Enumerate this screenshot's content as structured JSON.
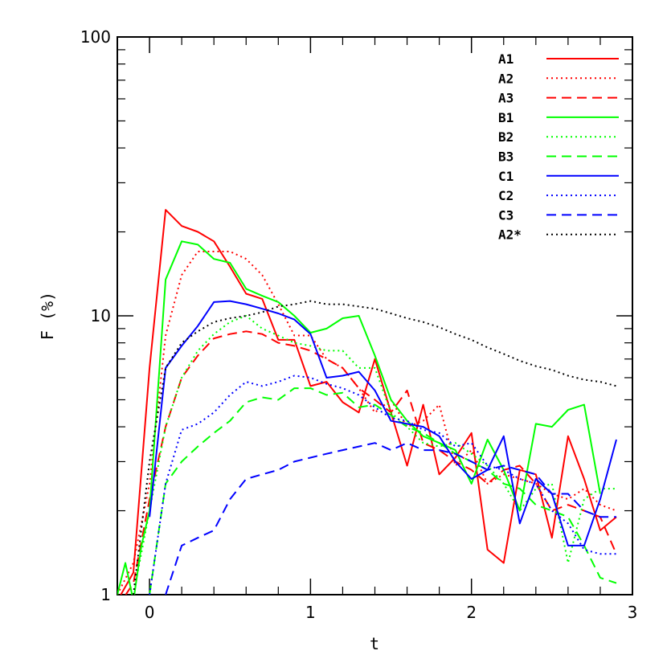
{
  "chart_data": {
    "type": "line",
    "xlabel": "t",
    "ylabel": "F (%)",
    "xlim": [
      -0.2,
      3.0
    ],
    "ylim": [
      1,
      100
    ],
    "yscale": "log",
    "x_ticks": [
      "0",
      "1",
      "2",
      "3"
    ],
    "y_ticks": [
      "1",
      "10",
      "100"
    ],
    "legend_position": "top-right",
    "series": [
      {
        "name": "A1",
        "color": "#ff0000",
        "dash": "solid",
        "x": [
          -0.2,
          -0.1,
          0.0,
          0.1,
          0.2,
          0.3,
          0.4,
          0.5,
          0.6,
          0.7,
          0.8,
          0.9,
          1.0,
          1.1,
          1.2,
          1.3,
          1.4,
          1.5,
          1.6,
          1.7,
          1.8,
          1.9,
          2.0,
          2.1,
          2.2,
          2.3,
          2.4,
          2.5,
          2.6,
          2.7,
          2.8,
          2.9
        ],
        "y": [
          0.95,
          1.2,
          6.5,
          24,
          21,
          20,
          18.5,
          15,
          12,
          11.5,
          8.2,
          8.2,
          5.6,
          5.8,
          4.9,
          4.5,
          7.0,
          4.5,
          2.9,
          4.8,
          2.7,
          3.1,
          3.8,
          1.45,
          1.3,
          2.8,
          2.7,
          1.6,
          3.7,
          2.6,
          1.7,
          1.9
        ]
      },
      {
        "name": "A2",
        "color": "#ff0000",
        "dash": "dotted",
        "x": [
          -0.2,
          -0.1,
          0.0,
          0.1,
          0.2,
          0.3,
          0.4,
          0.5,
          0.6,
          0.7,
          0.8,
          0.9,
          1.0,
          1.1,
          1.2,
          1.3,
          1.4,
          1.5,
          1.6,
          1.7,
          1.8,
          1.9,
          2.0,
          2.1,
          2.2,
          2.3,
          2.4,
          2.5,
          2.6,
          2.7,
          2.8,
          2.9
        ],
        "y": [
          1.0,
          1.3,
          2.5,
          8.5,
          14,
          17,
          17,
          17,
          16,
          14,
          11,
          8.5,
          8.5,
          7.0,
          6.5,
          5.5,
          4.5,
          5.0,
          4.0,
          4.2,
          4.8,
          2.9,
          3.3,
          2.5,
          2.7,
          2.6,
          2.5,
          2.3,
          2.2,
          2.4,
          2.1,
          2.0
        ]
      },
      {
        "name": "A3",
        "color": "#ff0000",
        "dash": "dashed",
        "x": [
          -0.2,
          -0.1,
          0.0,
          0.1,
          0.2,
          0.3,
          0.4,
          0.5,
          0.6,
          0.7,
          0.8,
          0.9,
          1.0,
          1.1,
          1.2,
          1.3,
          1.4,
          1.5,
          1.6,
          1.7,
          1.8,
          1.9,
          2.0,
          2.1,
          2.2,
          2.3,
          2.4,
          2.5,
          2.6,
          2.7,
          2.8,
          2.9
        ],
        "y": [
          0.9,
          1.1,
          2.2,
          4.0,
          6.0,
          7.2,
          8.3,
          8.6,
          8.8,
          8.6,
          8.0,
          7.8,
          7.5,
          7.0,
          6.5,
          5.5,
          5.0,
          4.5,
          5.4,
          3.5,
          3.3,
          3.0,
          2.8,
          2.5,
          2.8,
          2.9,
          2.5,
          2.0,
          2.1,
          2.0,
          1.9,
          1.4
        ]
      },
      {
        "name": "B1",
        "color": "#00ff00",
        "dash": "solid",
        "x": [
          -0.2,
          -0.15,
          -0.1,
          -0.05,
          0.0,
          0.1,
          0.2,
          0.3,
          0.4,
          0.5,
          0.6,
          0.7,
          0.8,
          0.9,
          1.0,
          1.1,
          1.2,
          1.3,
          1.4,
          1.5,
          1.6,
          1.7,
          1.8,
          1.9,
          2.0,
          2.1,
          2.2,
          2.3,
          2.4,
          2.5,
          2.6,
          2.7,
          2.8
        ],
        "y": [
          1.0,
          1.3,
          0.95,
          1.5,
          2.0,
          13.5,
          18.5,
          18,
          16,
          15.5,
          12.5,
          11.8,
          11.2,
          10.0,
          8.7,
          9.0,
          9.8,
          10.0,
          7.2,
          5.0,
          4.2,
          3.7,
          3.5,
          3.3,
          2.5,
          3.6,
          2.8,
          2.0,
          4.1,
          4.0,
          4.6,
          4.8,
          2.3
        ]
      },
      {
        "name": "B2",
        "color": "#00ff00",
        "dash": "dotted",
        "x": [
          -0.1,
          0.0,
          0.1,
          0.2,
          0.3,
          0.4,
          0.5,
          0.6,
          0.7,
          0.8,
          0.9,
          1.0,
          1.1,
          1.2,
          1.3,
          1.4,
          1.5,
          1.6,
          1.7,
          1.8,
          1.9,
          2.0,
          2.1,
          2.2,
          2.3,
          2.4,
          2.5,
          2.6,
          2.7,
          2.8,
          2.9
        ],
        "y": [
          1.0,
          2.0,
          4.0,
          6.0,
          7.5,
          8.6,
          9.5,
          10.0,
          9.0,
          8.5,
          8.0,
          7.8,
          7.5,
          7.5,
          6.5,
          6.5,
          4.5,
          4.0,
          3.5,
          3.4,
          3.5,
          3.2,
          2.9,
          2.5,
          2.0,
          2.4,
          2.5,
          1.3,
          2.2,
          2.4,
          2.4
        ]
      },
      {
        "name": "B3",
        "color": "#00ff00",
        "dash": "dashed",
        "x": [
          0.0,
          0.1,
          0.2,
          0.3,
          0.4,
          0.5,
          0.6,
          0.7,
          0.8,
          0.9,
          1.0,
          1.1,
          1.2,
          1.3,
          1.4,
          1.5,
          1.6,
          1.7,
          1.8,
          1.9,
          2.0,
          2.1,
          2.2,
          2.3,
          2.4,
          2.5,
          2.6,
          2.7,
          2.8,
          2.9
        ],
        "y": [
          1.0,
          2.5,
          3.0,
          3.4,
          3.8,
          4.2,
          4.9,
          5.1,
          5.0,
          5.5,
          5.5,
          5.2,
          5.3,
          4.7,
          4.8,
          4.4,
          4.0,
          3.8,
          3.5,
          3.2,
          3.0,
          2.8,
          2.5,
          2.4,
          2.1,
          2.0,
          1.9,
          1.5,
          1.15,
          1.1
        ]
      },
      {
        "name": "C1",
        "color": "#0000ff",
        "dash": "solid",
        "x": [
          0.0,
          0.1,
          0.2,
          0.3,
          0.4,
          0.5,
          0.6,
          0.7,
          0.8,
          0.9,
          1.0,
          1.1,
          1.2,
          1.3,
          1.4,
          1.5,
          1.6,
          1.7,
          1.8,
          1.9,
          2.0,
          2.1,
          2.2,
          2.3,
          2.4,
          2.5,
          2.6,
          2.7,
          2.8,
          2.9
        ],
        "y": [
          1.9,
          6.5,
          7.8,
          9.2,
          11.2,
          11.3,
          11.0,
          10.6,
          10.2,
          9.7,
          8.6,
          6.0,
          6.1,
          6.3,
          5.4,
          4.2,
          4.1,
          4.0,
          3.7,
          3.0,
          2.6,
          2.8,
          3.7,
          1.8,
          2.6,
          2.3,
          1.5,
          1.5,
          2.2,
          3.6
        ]
      },
      {
        "name": "C2",
        "color": "#0000ff",
        "dash": "dotted",
        "x": [
          0.0,
          0.1,
          0.2,
          0.3,
          0.4,
          0.5,
          0.6,
          0.7,
          0.8,
          0.9,
          1.0,
          1.1,
          1.2,
          1.3,
          1.4,
          1.5,
          1.6,
          1.7,
          1.8,
          1.9,
          2.0,
          2.1,
          2.2,
          2.3,
          2.4,
          2.5,
          2.6,
          2.7,
          2.8,
          2.9
        ],
        "y": [
          1.0,
          2.5,
          3.9,
          4.1,
          4.5,
          5.2,
          5.8,
          5.6,
          5.8,
          6.1,
          6.0,
          5.7,
          5.5,
          5.2,
          4.7,
          4.3,
          4.2,
          3.9,
          3.8,
          3.4,
          3.5,
          2.9,
          2.8,
          2.6,
          2.5,
          2.0,
          1.8,
          1.45,
          1.4,
          1.4
        ]
      },
      {
        "name": "C3",
        "color": "#0000ff",
        "dash": "dashed",
        "x": [
          0.1,
          0.2,
          0.3,
          0.4,
          0.5,
          0.6,
          0.7,
          0.8,
          0.9,
          1.0,
          1.1,
          1.2,
          1.3,
          1.4,
          1.5,
          1.6,
          1.7,
          1.8,
          1.9,
          2.0,
          2.1,
          2.2,
          2.3,
          2.4,
          2.5,
          2.6,
          2.7,
          2.8,
          2.9
        ],
        "y": [
          1.0,
          1.5,
          1.6,
          1.7,
          2.2,
          2.6,
          2.7,
          2.8,
          3.0,
          3.1,
          3.2,
          3.3,
          3.4,
          3.5,
          3.3,
          3.5,
          3.3,
          3.3,
          3.2,
          3.0,
          2.8,
          2.9,
          2.8,
          2.7,
          2.3,
          2.3,
          2.0,
          1.9,
          1.9
        ]
      },
      {
        "name": "A2*",
        "color": "#000000",
        "dash": "dotted",
        "x": [
          -0.1,
          0.0,
          0.1,
          0.2,
          0.3,
          0.4,
          0.5,
          0.6,
          0.7,
          0.8,
          0.9,
          1.0,
          1.1,
          1.2,
          1.3,
          1.4,
          1.5,
          1.6,
          1.7,
          1.8,
          1.9,
          2.0,
          2.1,
          2.2,
          2.3,
          2.4,
          2.5,
          2.6,
          2.7,
          2.8,
          2.9
        ],
        "y": [
          1.0,
          3.0,
          6.5,
          8.0,
          8.8,
          9.5,
          9.8,
          10.0,
          10.3,
          10.8,
          11.0,
          11.3,
          11.0,
          11.0,
          10.8,
          10.6,
          10.2,
          9.8,
          9.5,
          9.1,
          8.6,
          8.2,
          7.7,
          7.3,
          6.9,
          6.6,
          6.4,
          6.1,
          5.9,
          5.8,
          5.6
        ]
      }
    ]
  }
}
